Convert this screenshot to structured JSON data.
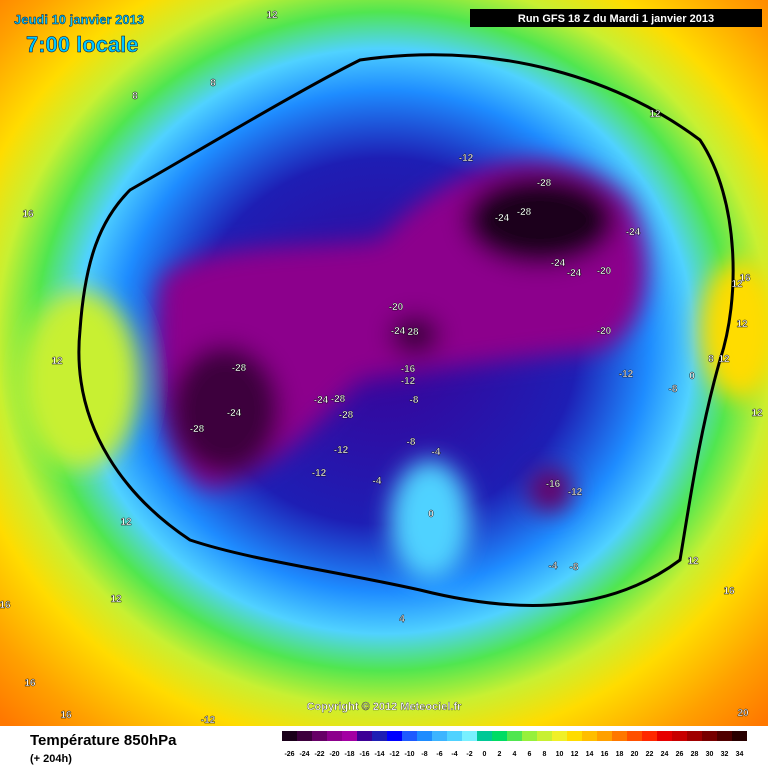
{
  "header": {
    "date": "Jeudi 10 janvier 2013",
    "time": "7:00 locale",
    "run": "Run GFS 18 Z du Mardi 1 janvier 2013"
  },
  "footer": {
    "title": "Température 850hPa",
    "lead": "(+ 204h)",
    "copyright": "Copyright © 2012 Meteociel.fr"
  },
  "scale": {
    "ticks": [
      -26,
      -24,
      -22,
      -20,
      -18,
      -16,
      -14,
      -12,
      -10,
      -8,
      -6,
      -4,
      -2,
      0,
      2,
      4,
      6,
      8,
      10,
      12,
      14,
      16,
      18,
      20,
      22,
      24,
      26,
      28,
      30,
      32,
      34
    ],
    "colors": [
      "#1a001a",
      "#3d003d",
      "#660066",
      "#8c008c",
      "#a300a3",
      "#3c0096",
      "#1e1eb4",
      "#0000ff",
      "#1e5aff",
      "#1e8cff",
      "#3cb4ff",
      "#50d2ff",
      "#78f0ff",
      "#00c896",
      "#00dc64",
      "#50e650",
      "#96f03c",
      "#c8f032",
      "#f0f028",
      "#ffdc00",
      "#ffbe00",
      "#ffa000",
      "#ff7800",
      "#ff5000",
      "#ff2800",
      "#e60000",
      "#c80000",
      "#a00000",
      "#780000",
      "#500000",
      "#280000"
    ]
  },
  "map_labels": [
    "12",
    "8",
    "8",
    "12",
    "16",
    "-12",
    "-28",
    "-24",
    "-28",
    "-24",
    "-24",
    "-24",
    "-20",
    "16",
    "12",
    "12",
    "-20",
    "-24",
    "28",
    "-20",
    "12",
    "-28",
    "-16",
    "-12",
    "-12",
    "8",
    "12",
    "-8",
    "0",
    "-24",
    "-24",
    "-28",
    "-28",
    "-28",
    "-8",
    "-8",
    "12",
    "-12",
    "-12",
    "-4",
    "-4",
    "-16",
    "-12",
    "0",
    "12",
    "-4",
    "-8",
    "12",
    "12",
    "16",
    "16",
    "4",
    "16",
    "16",
    "-12",
    "20"
  ]
}
